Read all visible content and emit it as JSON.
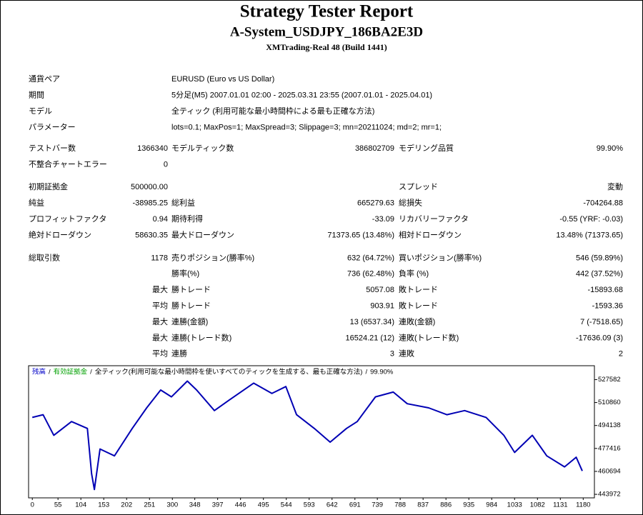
{
  "header": {
    "title": "Strategy Tester Report",
    "subtitle": "A-System_USDJPY_186BA2E3D",
    "server": "XMTrading-Real 48 (Build 1441)"
  },
  "info": [
    {
      "label": "通貨ペア",
      "text": "EURUSD (Euro vs US Dollar)"
    },
    {
      "label": "期間",
      "text": "5分足(M5) 2007.01.01 02:00 - 2025.03.31 23:55 (2007.01.01 - 2025.04.01)"
    },
    {
      "label": "モデル",
      "text": "全ティック (利用可能な最小時間枠による最も正確な方法)"
    },
    {
      "label": "パラメーター",
      "text": "lots=0.1; MaxPos=1; MaxSpread=3; Slippage=3; mn=20211024; md=2; mr=1;"
    }
  ],
  "stats": [
    [
      {
        "label": "テストバー数",
        "value": "1366340",
        "label2": "モデルティック数",
        "value2": "386802709",
        "label3": "モデリング品質",
        "value3": "99.90%"
      },
      {
        "label": "不整合チャートエラー",
        "value": "0"
      }
    ],
    [
      {
        "label": "初期証拠金",
        "value": "500000.00",
        "label3": "スプレッド",
        "value3": "変動"
      },
      {
        "label": "純益",
        "value": "-38985.25",
        "label2": "総利益",
        "value2": "665279.63",
        "label3": "総損失",
        "value3": "-704264.88"
      },
      {
        "label": "プロフィットファクタ",
        "value": "0.94",
        "label2": "期待利得",
        "value2": "-33.09",
        "label3": "リカバリーファクタ",
        "value3": "-0.55 (YRF: -0.03)"
      },
      {
        "label": "絶対ドローダウン",
        "value": "58630.35",
        "label2": "最大ドローダウン",
        "value2": "71373.65 (13.48%)",
        "label3": "相対ドローダウン",
        "value3": "13.48% (71373.65)"
      }
    ],
    [
      {
        "label": "総取引数",
        "value": "1178",
        "label2": "売りポジション(勝率%)",
        "value2": "632 (64.72%)",
        "label3": "買いポジション(勝率%)",
        "value3": "546 (59.89%)"
      },
      {
        "label2": "勝率(%)",
        "value2": "736 (62.48%)",
        "label3": "負率 (%)",
        "value3": "442 (37.52%)"
      },
      {
        "value": "最大",
        "label2": "勝トレード",
        "value2": "5057.08",
        "label3": "敗トレード",
        "value3": "-15893.68"
      },
      {
        "value": "平均",
        "label2": "勝トレード",
        "value2": "903.91",
        "label3": "敗トレード",
        "value3": "-1593.36"
      },
      {
        "value": "最大",
        "label2": "連勝(金額)",
        "value2": "13 (6537.34)",
        "label3": "連敗(金額)",
        "value3": "7 (-7518.65)"
      },
      {
        "value": "最大",
        "label2": "連勝(トレード数)",
        "value2": "16524.21 (12)",
        "label3": "連敗(トレード数)",
        "value3": "-17636.09 (3)"
      },
      {
        "value": "平均",
        "label2": "連勝",
        "value2": "3",
        "label3": "連敗",
        "value3": "2"
      }
    ]
  ],
  "chart_data": {
    "type": "line",
    "legend": [
      {
        "text": "残高",
        "color": "#0000c8"
      },
      {
        "text": "有効証拠金",
        "color": "#00a000"
      },
      {
        "text": "全ティック(利用可能な最小時間枠を使いすべてのティックを生成する、最も正確な方法)"
      },
      {
        "text": "99.90%"
      }
    ],
    "legend_separator": "/",
    "series": [
      {
        "name": "残高",
        "color": "#0000b4",
        "x": [
          0,
          23,
          46,
          84,
          118,
          127,
          133,
          145,
          176,
          214,
          245,
          275,
          298,
          332,
          352,
          390,
          421,
          474,
          513,
          543,
          566,
          604,
          638,
          673,
          696,
          735,
          773,
          803,
          849,
          888,
          926,
          972,
          1010,
          1033,
          1071,
          1102,
          1140,
          1165,
          1178
        ],
        "values": [
          500000,
          502000,
          487000,
          497000,
          492000,
          459000,
          447500,
          477000,
          472000,
          492000,
          507000,
          520000,
          515000,
          526500,
          520000,
          505000,
          512500,
          525000,
          517500,
          522500,
          502000,
          492000,
          482000,
          492000,
          497000,
          515000,
          518500,
          510000,
          507000,
          502000,
          505000,
          500000,
          487000,
          474500,
          487000,
          472000,
          464000,
          471000,
          461015
        ]
      }
    ],
    "xlim": [
      -8,
      1204
    ],
    "xticks": [
      0,
      55,
      104,
      153,
      202,
      251,
      300,
      348,
      397,
      446,
      495,
      544,
      593,
      642,
      691,
      739,
      788,
      837,
      886,
      935,
      984,
      1033,
      1082,
      1131,
      1180
    ],
    "ylim": [
      441400,
      537700
    ],
    "yticks": [
      443972,
      460694,
      477416,
      494138,
      510860,
      527582
    ],
    "grid": false
  }
}
